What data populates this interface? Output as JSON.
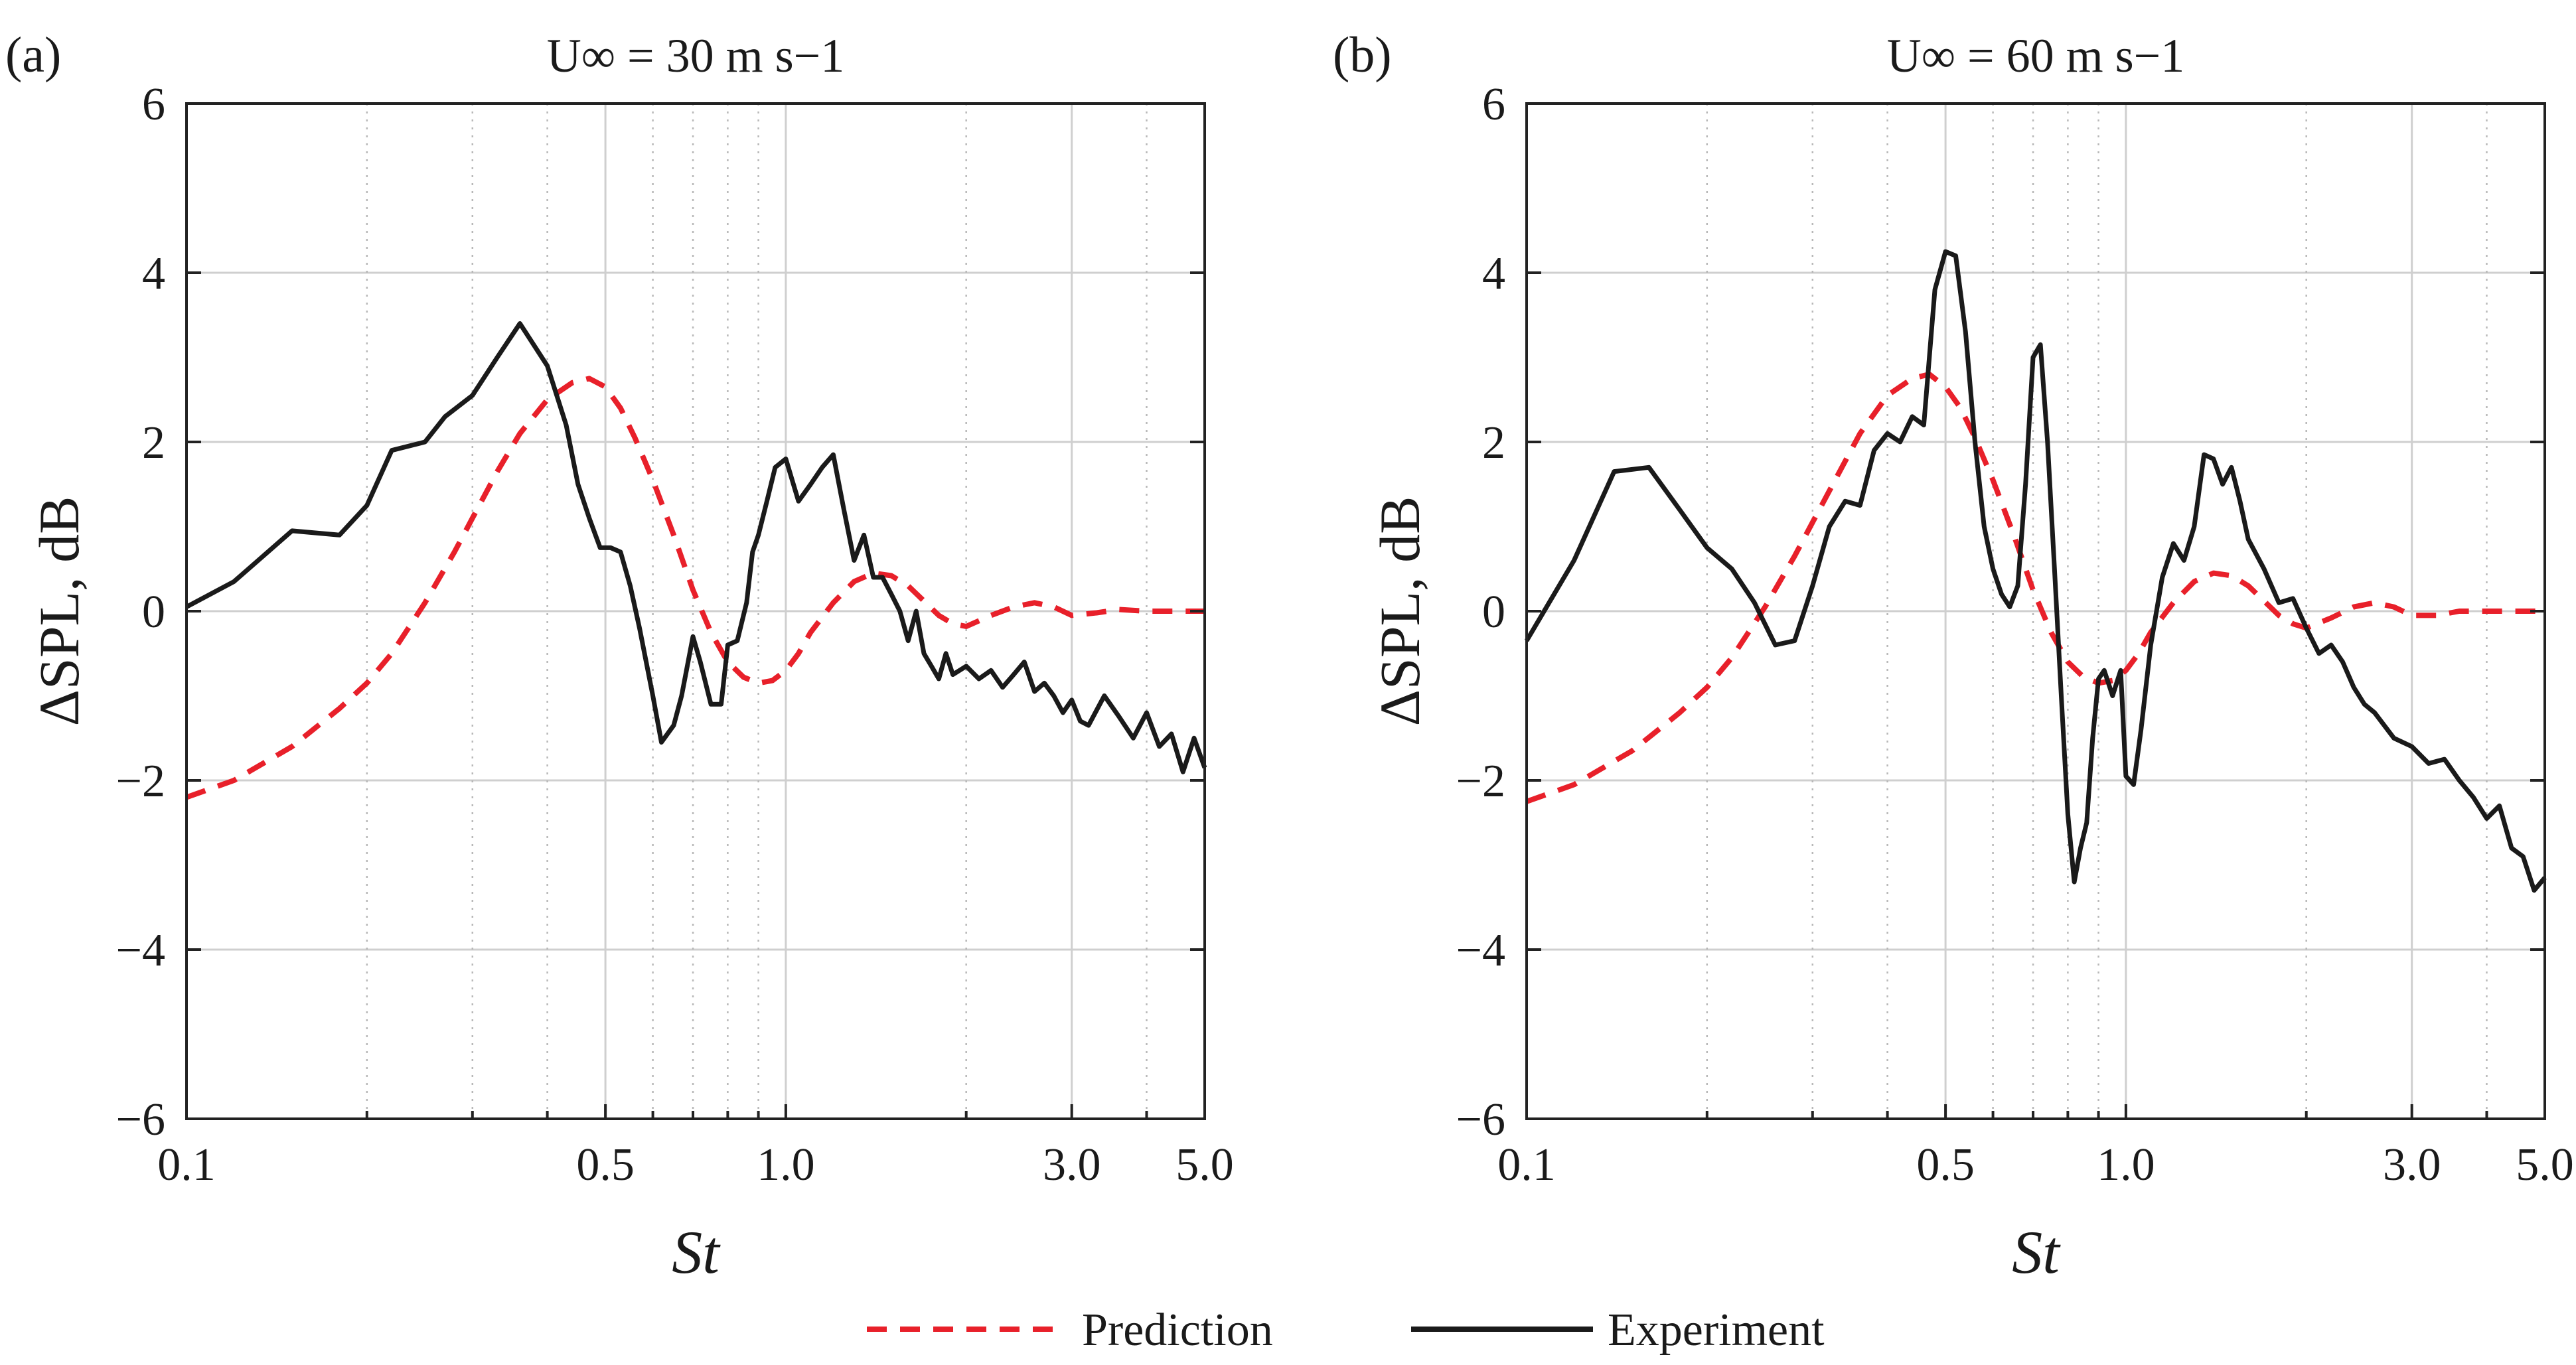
{
  "legend": {
    "prediction": "Prediction",
    "experiment": "Experiment"
  },
  "colors": {
    "prediction": "#e8202a",
    "experiment": "#1a1a1a"
  },
  "chart_data": [
    {
      "type": "line",
      "panel_label": "(a)",
      "title": "U∞ = 30 m s−1",
      "xlabel": "St",
      "ylabel": "ΔSPL, dB",
      "xscale": "log",
      "xlim": [
        0.1,
        5.0
      ],
      "ylim": [
        -6,
        6
      ],
      "xticks": [
        0.1,
        0.5,
        1.0,
        3.0,
        5.0
      ],
      "xtick_labels": [
        "0.1",
        "0.5",
        "1.0",
        "3.0",
        "5.0"
      ],
      "yticks": [
        -6,
        -4,
        -2,
        0,
        2,
        4,
        6
      ],
      "ytick_labels": [
        "−6",
        "−4",
        "−2",
        "0",
        "2",
        "4",
        "6"
      ],
      "grid": true,
      "series": [
        {
          "name": "Prediction",
          "style": "dashed",
          "x": [
            0.1,
            0.12,
            0.15,
            0.18,
            0.2,
            0.22,
            0.25,
            0.28,
            0.3,
            0.33,
            0.36,
            0.4,
            0.44,
            0.47,
            0.5,
            0.53,
            0.56,
            0.6,
            0.65,
            0.7,
            0.75,
            0.8,
            0.85,
            0.9,
            0.95,
            1.0,
            1.05,
            1.1,
            1.2,
            1.3,
            1.4,
            1.5,
            1.6,
            1.7,
            1.8,
            1.9,
            2.0,
            2.2,
            2.4,
            2.6,
            2.8,
            3.0,
            3.3,
            3.6,
            4.0,
            4.5,
            5.0
          ],
          "y": [
            -2.2,
            -2.0,
            -1.6,
            -1.15,
            -0.85,
            -0.5,
            0.1,
            0.7,
            1.1,
            1.65,
            2.1,
            2.5,
            2.7,
            2.75,
            2.65,
            2.4,
            2.05,
            1.55,
            0.9,
            0.25,
            -0.25,
            -0.6,
            -0.78,
            -0.85,
            -0.82,
            -0.7,
            -0.5,
            -0.25,
            0.1,
            0.35,
            0.45,
            0.42,
            0.3,
            0.12,
            -0.05,
            -0.15,
            -0.18,
            -0.05,
            0.05,
            0.1,
            0.05,
            -0.05,
            -0.02,
            0.02,
            0.0,
            0.0,
            0.0
          ]
        },
        {
          "name": "Experiment",
          "style": "solid",
          "x": [
            0.1,
            0.12,
            0.15,
            0.18,
            0.2,
            0.22,
            0.25,
            0.27,
            0.3,
            0.33,
            0.36,
            0.4,
            0.43,
            0.45,
            0.47,
            0.49,
            0.51,
            0.53,
            0.55,
            0.57,
            0.6,
            0.62,
            0.65,
            0.67,
            0.7,
            0.72,
            0.75,
            0.78,
            0.8,
            0.83,
            0.86,
            0.88,
            0.9,
            0.93,
            0.96,
            1.0,
            1.05,
            1.1,
            1.15,
            1.2,
            1.25,
            1.3,
            1.35,
            1.4,
            1.45,
            1.5,
            1.55,
            1.6,
            1.65,
            1.7,
            1.75,
            1.8,
            1.85,
            1.9,
            2.0,
            2.1,
            2.2,
            2.3,
            2.4,
            2.5,
            2.6,
            2.7,
            2.8,
            2.9,
            3.0,
            3.1,
            3.2,
            3.4,
            3.6,
            3.8,
            4.0,
            4.2,
            4.4,
            4.6,
            4.8,
            5.0
          ],
          "y": [
            0.05,
            0.35,
            0.95,
            0.9,
            1.25,
            1.9,
            2.0,
            2.3,
            2.55,
            3.0,
            3.4,
            2.9,
            2.2,
            1.5,
            1.1,
            0.75,
            0.75,
            0.7,
            0.3,
            -0.2,
            -1.0,
            -1.55,
            -1.35,
            -1.0,
            -0.3,
            -0.6,
            -1.1,
            -1.1,
            -0.4,
            -0.35,
            0.1,
            0.7,
            0.9,
            1.3,
            1.7,
            1.8,
            1.3,
            1.5,
            1.7,
            1.85,
            1.2,
            0.6,
            0.9,
            0.4,
            0.4,
            0.2,
            0.0,
            -0.35,
            0.0,
            -0.5,
            -0.65,
            -0.8,
            -0.5,
            -0.75,
            -0.65,
            -0.8,
            -0.7,
            -0.9,
            -0.75,
            -0.6,
            -0.95,
            -0.85,
            -1.0,
            -1.2,
            -1.05,
            -1.3,
            -1.35,
            -1.0,
            -1.25,
            -1.5,
            -1.2,
            -1.6,
            -1.45,
            -1.9,
            -1.5,
            -1.85
          ]
        }
      ]
    },
    {
      "type": "line",
      "panel_label": "(b)",
      "title": "U∞ = 60 m s−1",
      "xlabel": "St",
      "ylabel": "ΔSPL, dB",
      "xscale": "log",
      "xlim": [
        0.1,
        5.0
      ],
      "ylim": [
        -6,
        6
      ],
      "xticks": [
        0.1,
        0.5,
        1.0,
        3.0,
        5.0
      ],
      "xtick_labels": [
        "0.1",
        "0.5",
        "1.0",
        "3.0",
        "5.0"
      ],
      "yticks": [
        -6,
        -4,
        -2,
        0,
        2,
        4,
        6
      ],
      "ytick_labels": [
        "−6",
        "−4",
        "−2",
        "0",
        "2",
        "4",
        "6"
      ],
      "grid": true,
      "series": [
        {
          "name": "Prediction",
          "style": "dashed",
          "x": [
            0.1,
            0.12,
            0.15,
            0.18,
            0.2,
            0.22,
            0.25,
            0.28,
            0.3,
            0.33,
            0.36,
            0.4,
            0.44,
            0.47,
            0.5,
            0.53,
            0.56,
            0.6,
            0.65,
            0.7,
            0.75,
            0.8,
            0.85,
            0.9,
            0.95,
            1.0,
            1.05,
            1.1,
            1.2,
            1.3,
            1.4,
            1.5,
            1.6,
            1.7,
            1.8,
            1.9,
            2.0,
            2.2,
            2.4,
            2.6,
            2.8,
            3.0,
            3.3,
            3.6,
            4.0,
            4.5,
            5.0
          ],
          "y": [
            -2.25,
            -2.05,
            -1.65,
            -1.2,
            -0.9,
            -0.55,
            0.05,
            0.65,
            1.05,
            1.6,
            2.1,
            2.55,
            2.75,
            2.8,
            2.65,
            2.4,
            2.05,
            1.55,
            0.9,
            0.25,
            -0.25,
            -0.6,
            -0.78,
            -0.85,
            -0.82,
            -0.7,
            -0.5,
            -0.25,
            0.1,
            0.35,
            0.45,
            0.42,
            0.3,
            0.12,
            -0.05,
            -0.15,
            -0.2,
            -0.08,
            0.05,
            0.1,
            0.05,
            -0.05,
            -0.05,
            0.0,
            0.0,
            0.0,
            0.0
          ]
        },
        {
          "name": "Experiment",
          "style": "solid",
          "x": [
            0.1,
            0.12,
            0.14,
            0.16,
            0.18,
            0.2,
            0.22,
            0.24,
            0.26,
            0.28,
            0.3,
            0.32,
            0.34,
            0.36,
            0.38,
            0.4,
            0.42,
            0.44,
            0.46,
            0.48,
            0.5,
            0.52,
            0.54,
            0.56,
            0.58,
            0.6,
            0.62,
            0.64,
            0.66,
            0.68,
            0.7,
            0.72,
            0.74,
            0.76,
            0.78,
            0.8,
            0.82,
            0.84,
            0.86,
            0.88,
            0.9,
            0.92,
            0.95,
            0.98,
            1.0,
            1.03,
            1.06,
            1.1,
            1.15,
            1.2,
            1.25,
            1.3,
            1.35,
            1.4,
            1.45,
            1.5,
            1.55,
            1.6,
            1.7,
            1.8,
            1.9,
            2.0,
            2.1,
            2.2,
            2.3,
            2.4,
            2.5,
            2.6,
            2.8,
            3.0,
            3.2,
            3.4,
            3.6,
            3.8,
            4.0,
            4.2,
            4.4,
            4.6,
            4.8,
            5.0
          ],
          "y": [
            -0.35,
            0.6,
            1.65,
            1.7,
            1.2,
            0.75,
            0.5,
            0.1,
            -0.4,
            -0.35,
            0.3,
            1.0,
            1.3,
            1.25,
            1.9,
            2.1,
            2.0,
            2.3,
            2.2,
            3.8,
            4.25,
            4.2,
            3.3,
            2.0,
            1.0,
            0.5,
            0.2,
            0.05,
            0.3,
            1.5,
            3.0,
            3.15,
            2.0,
            0.5,
            -1.0,
            -2.4,
            -3.2,
            -2.8,
            -2.5,
            -1.5,
            -0.8,
            -0.7,
            -1.0,
            -0.7,
            -1.95,
            -2.05,
            -1.4,
            -0.4,
            0.4,
            0.8,
            0.6,
            1.0,
            1.85,
            1.8,
            1.5,
            1.7,
            1.3,
            0.85,
            0.5,
            0.1,
            0.15,
            -0.2,
            -0.5,
            -0.4,
            -0.6,
            -0.9,
            -1.1,
            -1.2,
            -1.5,
            -1.6,
            -1.8,
            -1.75,
            -2.0,
            -2.2,
            -2.45,
            -2.3,
            -2.8,
            -2.9,
            -3.3,
            -3.15
          ]
        }
      ]
    }
  ]
}
